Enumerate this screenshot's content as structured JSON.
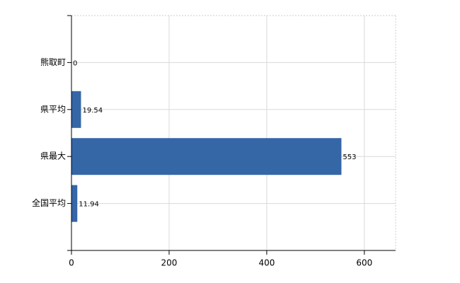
{
  "chart_data": {
    "type": "bar",
    "orientation": "horizontal",
    "categories": [
      "熊取町",
      "県平均",
      "県最大",
      "全国平均"
    ],
    "values": [
      0,
      19.54,
      553,
      11.94
    ],
    "color": "#3566a6",
    "xlim": [
      0,
      664
    ],
    "xticks": [
      0,
      200,
      400,
      600
    ],
    "grid": true
  }
}
